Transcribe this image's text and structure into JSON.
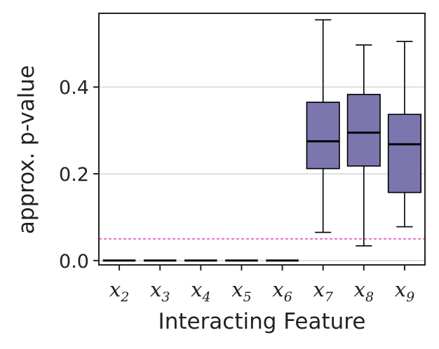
{
  "chart_data": {
    "type": "box",
    "xlabel": "Interacting Feature",
    "ylabel": "approx. p-value",
    "ylim": [
      -0.01,
      0.57
    ],
    "yticks": [
      {
        "value": 0.0,
        "label": "0.0"
      },
      {
        "value": 0.2,
        "label": "0.2"
      },
      {
        "value": 0.4,
        "label": "0.4"
      }
    ],
    "grid": "horizontal",
    "reference_line": {
      "y": 0.05,
      "color": "#d6249f",
      "style": "dashed"
    },
    "box_color": "#7b76ae",
    "categories": [
      {
        "base": "x",
        "sub": "2"
      },
      {
        "base": "x",
        "sub": "3"
      },
      {
        "base": "x",
        "sub": "4"
      },
      {
        "base": "x",
        "sub": "5"
      },
      {
        "base": "x",
        "sub": "6"
      },
      {
        "base": "x",
        "sub": "7"
      },
      {
        "base": "x",
        "sub": "8"
      },
      {
        "base": "x",
        "sub": "9"
      }
    ],
    "boxes": [
      {
        "min": 0.0,
        "q1": 0.0,
        "median": 0.0,
        "q3": 0.0,
        "max": 0.0
      },
      {
        "min": 0.0,
        "q1": 0.0,
        "median": 0.0,
        "q3": 0.0,
        "max": 0.0
      },
      {
        "min": 0.0,
        "q1": 0.0,
        "median": 0.0,
        "q3": 0.0,
        "max": 0.0
      },
      {
        "min": 0.0,
        "q1": 0.0,
        "median": 0.0,
        "q3": 0.0,
        "max": 0.0
      },
      {
        "min": 0.0,
        "q1": 0.0,
        "median": 0.0,
        "q3": 0.0,
        "max": 0.0
      },
      {
        "min": 0.065,
        "q1": 0.212,
        "median": 0.275,
        "q3": 0.365,
        "max": 0.555
      },
      {
        "min": 0.034,
        "q1": 0.218,
        "median": 0.295,
        "q3": 0.383,
        "max": 0.497
      },
      {
        "min": 0.078,
        "q1": 0.157,
        "median": 0.268,
        "q3": 0.337,
        "max": 0.505
      }
    ]
  }
}
